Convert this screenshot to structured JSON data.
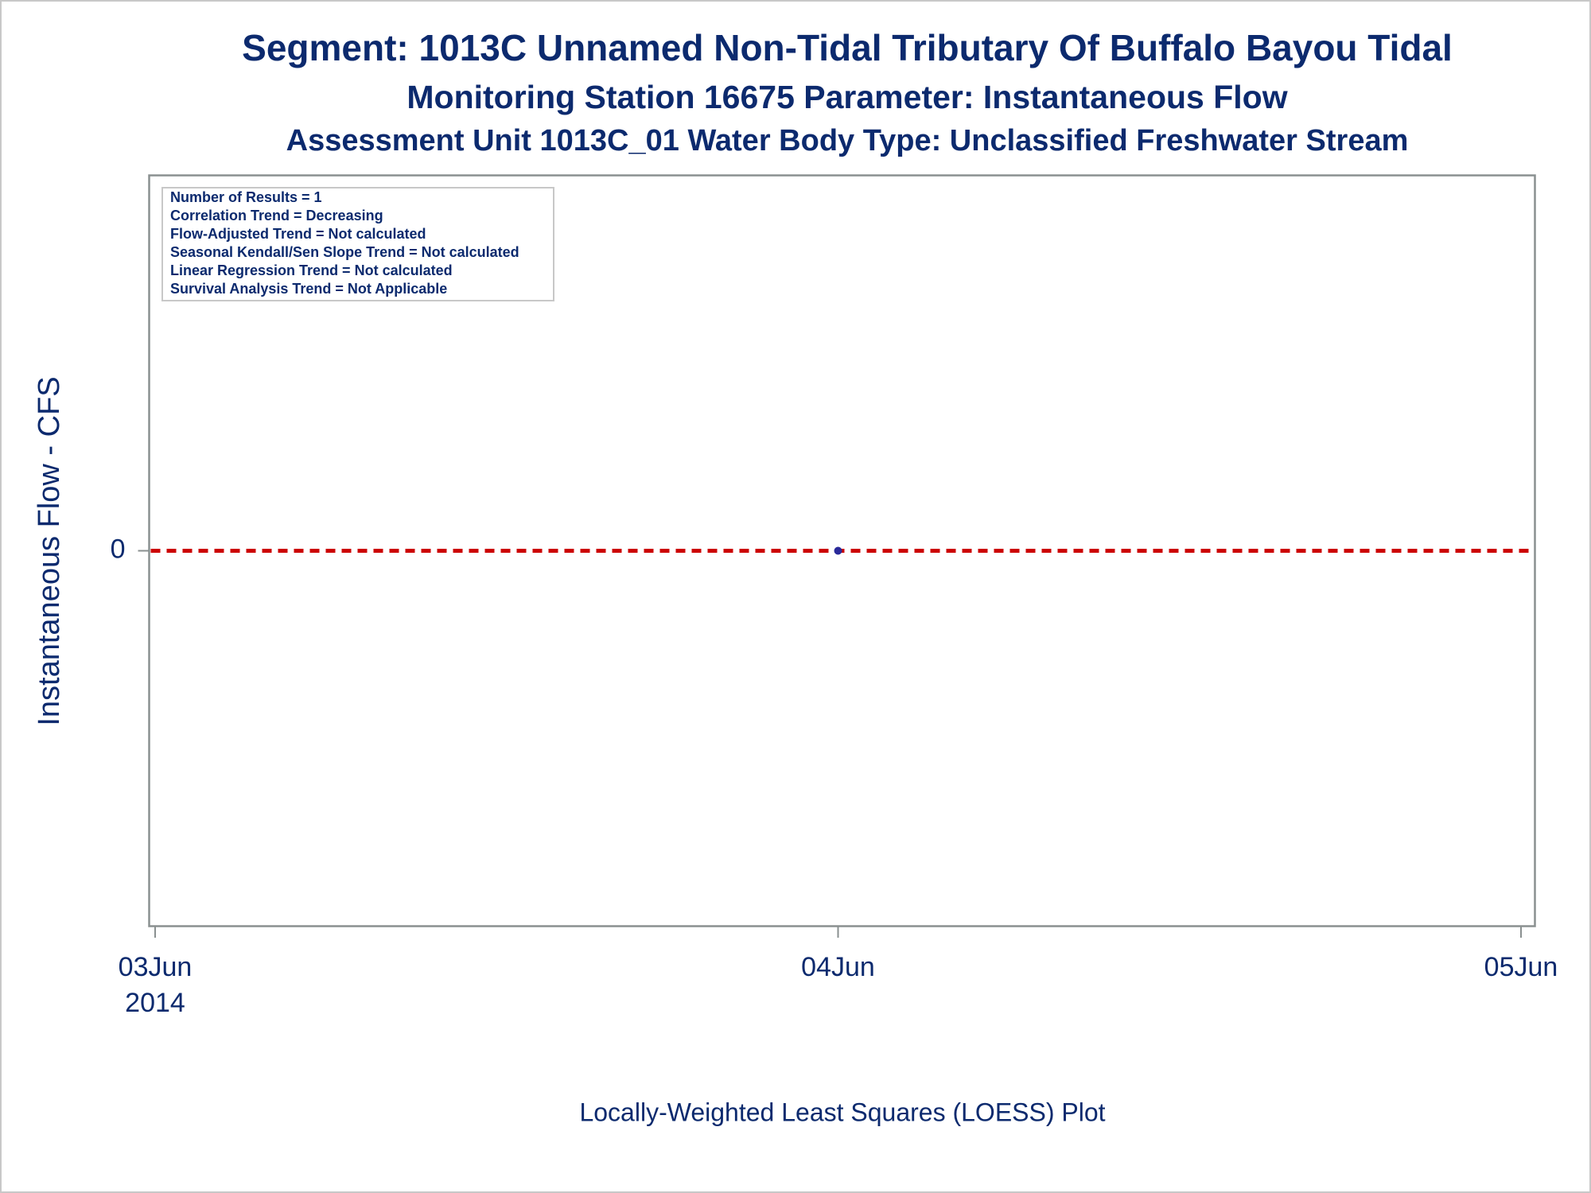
{
  "chart_data": {
    "type": "scatter",
    "title": "Segment: 1013C  Unnamed Non-Tidal Tributary Of Buffalo Bayou Tidal",
    "subtitle": "Monitoring Station 16675 Parameter: Instantaneous Flow",
    "subtitle2": "Assessment Unit 1013C_01   Water Body Type: Unclassified Freshwater Stream",
    "annotations": [
      "Number of Results = 1",
      "Correlation Trend = Decreasing",
      "Flow-Adjusted Trend = Not calculated",
      "Seasonal Kendall/Sen Slope Trend = Not calculated",
      "Linear Regression Trend = Not calculated",
      "Survival Analysis Trend = Not Applicable"
    ],
    "y_label": "Instantaneous Flow - CFS",
    "x_label": "Locally-Weighted Least Squares (LOESS) Plot",
    "x": [
      "2014-06-04"
    ],
    "values": [
      0
    ],
    "color": "#2a2a9a",
    "reference_line": {
      "value": 0,
      "color": "#cc0000"
    },
    "xlim": [
      "2014-06-03",
      "2014-06-05"
    ],
    "xticks": [
      {
        "value": "2014-06-03",
        "label": "03Jun"
      },
      {
        "value": "2014-06-04",
        "label": "04Jun"
      },
      {
        "value": "2014-06-05",
        "label": "05Jun"
      }
    ],
    "xtick_year": "2014",
    "ylim": [
      -1,
      1
    ],
    "yticks": [
      0
    ]
  }
}
